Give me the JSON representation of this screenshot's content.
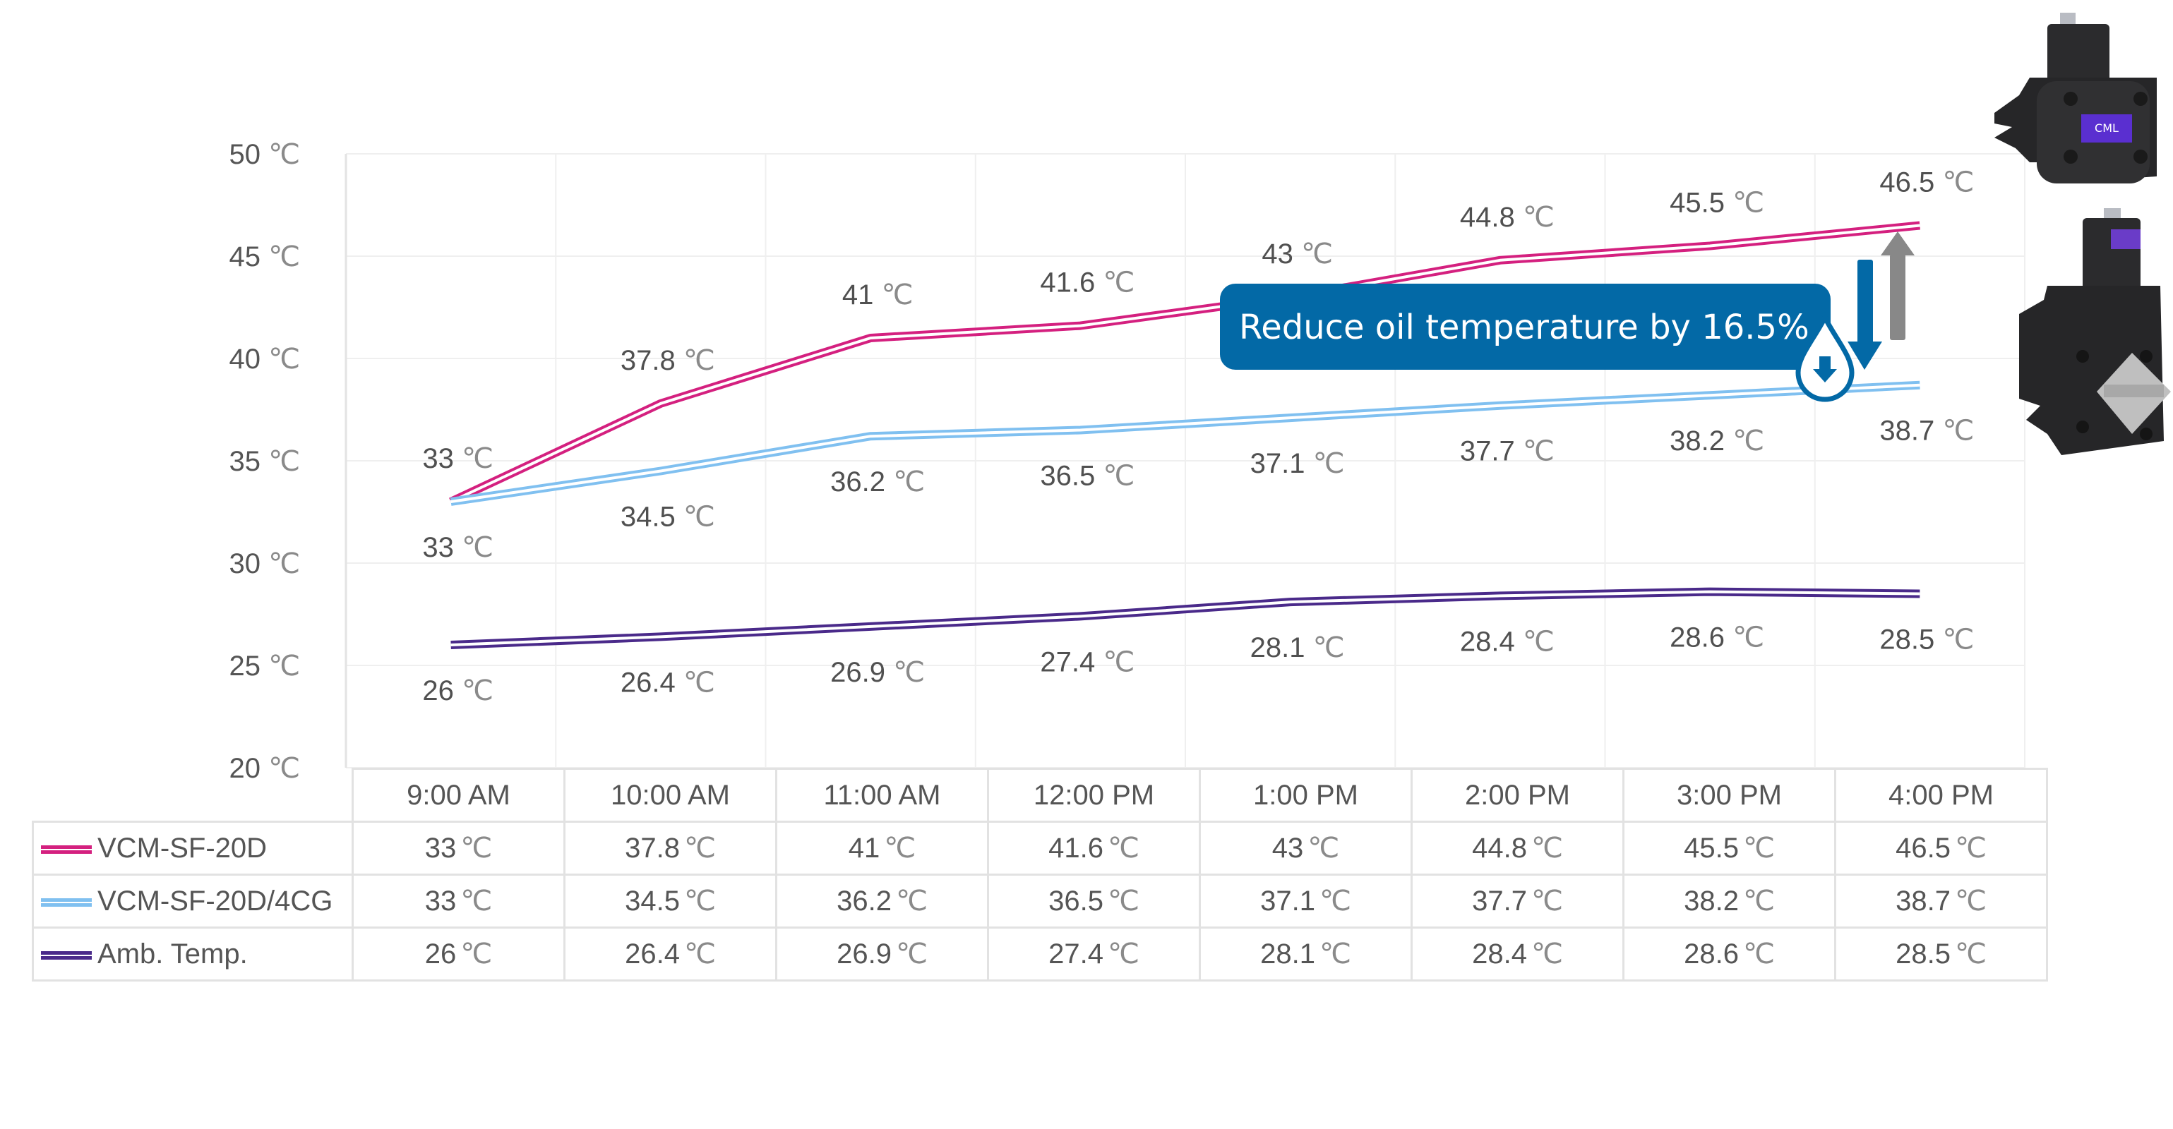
{
  "chart_data": {
    "type": "line",
    "title": "",
    "xlabel": "",
    "ylabel": "",
    "unit": "℃",
    "ylim": [
      20,
      50
    ],
    "yticks": [
      50,
      45,
      40,
      35,
      30,
      25,
      20
    ],
    "grid": true,
    "categories": [
      "9:00 AM",
      "10:00 AM",
      "11:00 AM",
      "12:00 PM",
      "1:00 PM",
      "2:00 PM",
      "3:00 PM",
      "4:00 PM"
    ],
    "series": [
      {
        "name": "VCM-SF-20D",
        "color": "#d4207f",
        "label_pos": "above",
        "values": [
          33,
          37.8,
          41,
          41.6,
          43,
          44.8,
          45.5,
          46.5
        ]
      },
      {
        "name": "VCM-SF-20D/4CG",
        "color": "#80c0f0",
        "label_pos": "below",
        "values": [
          33,
          34.5,
          36.2,
          36.5,
          37.1,
          37.7,
          38.2,
          38.7
        ]
      },
      {
        "name": "Amb. Temp.",
        "color": "#4a2a8a",
        "label_pos": "below",
        "values": [
          26,
          26.4,
          26.9,
          27.4,
          28.1,
          28.4,
          28.6,
          28.5
        ]
      }
    ],
    "legend_position": "table-below",
    "annotation": {
      "text": "Reduce oil temperature by 16.5%",
      "bg_color": "#0369a6",
      "text_color": "#ffffff",
      "arrow_down_color": "#0369a6",
      "arrow_up_color": "#888888"
    }
  },
  "table": {
    "headers": [
      "9:00 AM",
      "10:00 AM",
      "11:00 AM",
      "12:00 PM",
      "1:00 PM",
      "2:00 PM",
      "3:00 PM",
      "4:00 PM"
    ],
    "rows": [
      {
        "label": "VCM-SF-20D",
        "values": [
          "33",
          "37.8",
          "41",
          "41.6",
          "43",
          "44.8",
          "45.5",
          "46.5"
        ]
      },
      {
        "label": "VCM-SF-20D/4CG",
        "values": [
          "33",
          "34.5",
          "36.2",
          "36.5",
          "37.1",
          "37.7",
          "38.2",
          "38.7"
        ]
      },
      {
        "label": "Amb. Temp.",
        "values": [
          "26",
          "26.4",
          "26.9",
          "27.4",
          "28.1",
          "28.4",
          "28.6",
          "28.5"
        ]
      }
    ]
  },
  "products": [
    {
      "name": "VCM-SF-20D pump",
      "badge": "CML",
      "badge_color": "#5a2fd0"
    },
    {
      "name": "VCM-SF-20D/4CG pump",
      "badge": "CML",
      "badge_color": "#6a3cc8"
    }
  ]
}
